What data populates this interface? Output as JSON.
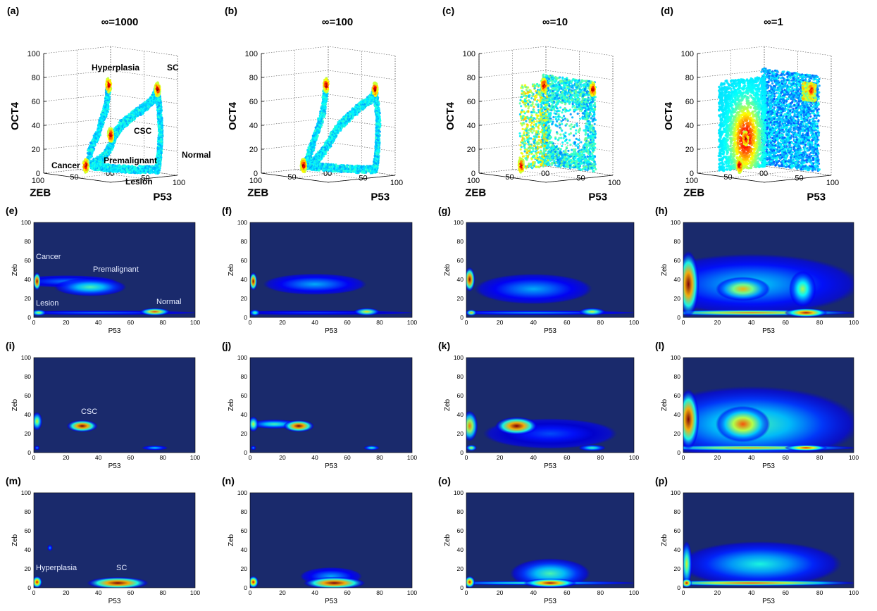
{
  "chart_data": [
    {
      "panel": "(a)",
      "type": "scatter",
      "title": "∞=1000",
      "xlabel": "P53",
      "ylabel": "ZEB",
      "zlabel": "OCT4",
      "xlim": [
        0,
        100
      ],
      "ylim": [
        0,
        100
      ],
      "zlim": [
        0,
        100
      ],
      "annotations": [
        "Hyperplasia",
        "SC",
        "CSC",
        "Normal",
        "Premalignant",
        "Cancer",
        "Lesion"
      ],
      "curves": [
        {
          "pts": [
            [
              75,
              5,
              70
            ],
            [
              70,
              5,
              62
            ],
            [
              62,
              10,
              55
            ],
            [
              55,
              20,
              48
            ],
            [
              45,
              28,
              40
            ],
            [
              35,
              30,
              30
            ],
            [
              30,
              30,
              20
            ],
            [
              20,
              32,
              10
            ],
            [
              5,
              35,
              3
            ]
          ]
        },
        {
          "pts": [
            [
              75,
              5,
              70
            ],
            [
              78,
              5,
              55
            ],
            [
              80,
              5,
              35
            ],
            [
              78,
              5,
              15
            ],
            [
              75,
              5,
              3
            ]
          ]
        },
        {
          "pts": [
            [
              2,
              5,
              68
            ],
            [
              2,
              8,
              50
            ],
            [
              2,
              20,
              30
            ],
            [
              2,
              35,
              10
            ]
          ]
        },
        {
          "pts": [
            [
              75,
              5,
              3
            ],
            [
              55,
              25,
              3
            ],
            [
              35,
              35,
              3
            ],
            [
              10,
              38,
              3
            ]
          ]
        }
      ],
      "clusters": [
        [
          75,
          5,
          70
        ],
        [
          2,
          5,
          68
        ],
        [
          3,
          40,
          3
        ],
        [
          30,
          30,
          30
        ]
      ]
    },
    {
      "panel": "(b)",
      "type": "scatter",
      "title": "∞=100",
      "xlabel": "P53",
      "ylabel": "ZEB",
      "zlabel": "OCT4",
      "xlim": [
        0,
        100
      ],
      "ylim": [
        0,
        100
      ],
      "zlim": [
        0,
        100
      ],
      "curves": [
        {
          "pts": [
            [
              75,
              5,
              70
            ],
            [
              70,
              5,
              62
            ],
            [
              60,
              12,
              55
            ],
            [
              50,
              22,
              45
            ],
            [
              40,
              28,
              35
            ],
            [
              30,
              30,
              22
            ],
            [
              15,
              33,
              8
            ],
            [
              5,
              35,
              3
            ]
          ]
        },
        {
          "pts": [
            [
              75,
              5,
              70
            ],
            [
              80,
              5,
              45
            ],
            [
              78,
              5,
              15
            ],
            [
              75,
              5,
              3
            ]
          ]
        },
        {
          "pts": [
            [
              2,
              5,
              68
            ],
            [
              2,
              10,
              45
            ],
            [
              2,
              25,
              20
            ],
            [
              2,
              35,
              5
            ]
          ]
        },
        {
          "pts": [
            [
              75,
              5,
              3
            ],
            [
              50,
              25,
              3
            ],
            [
              20,
              35,
              3
            ],
            [
              5,
              38,
              3
            ]
          ]
        }
      ],
      "clusters": [
        [
          75,
          5,
          70
        ],
        [
          2,
          5,
          68
        ],
        [
          3,
          40,
          3
        ]
      ]
    },
    {
      "panel": "(c)",
      "type": "scatter",
      "title": "∞=10",
      "xlabel": "P53",
      "ylabel": "ZEB",
      "zlabel": "OCT4",
      "xlim": [
        0,
        100
      ],
      "ylim": [
        0,
        100
      ],
      "zlim": [
        0,
        100
      ],
      "clusters": [
        [
          3,
          40,
          3
        ],
        [
          2,
          5,
          68
        ],
        [
          75,
          5,
          70
        ]
      ]
    },
    {
      "panel": "(d)",
      "type": "scatter",
      "title": "∞=1",
      "xlabel": "P53",
      "ylabel": "ZEB",
      "zlabel": "OCT4",
      "xlim": [
        0,
        100
      ],
      "ylim": [
        0,
        100
      ],
      "zlim": [
        0,
        100
      ],
      "clusters": [
        [
          2,
          30,
          25
        ],
        [
          3,
          40,
          3
        ],
        [
          75,
          5,
          70
        ]
      ]
    },
    {
      "panel": "(e)",
      "type": "heatmap",
      "xlabel": "P53",
      "ylabel": "Zeb",
      "xlim": [
        0,
        100
      ],
      "ylim": [
        0,
        100
      ],
      "annotations": [
        "Cancer",
        "Premalignant",
        "Normal",
        "Lesion"
      ],
      "blobs": [
        [
          2,
          38,
          1.5,
          6,
          1.0
        ],
        [
          35,
          32,
          14,
          6,
          0.45
        ],
        [
          75,
          6,
          6,
          2.5,
          0.8
        ],
        [
          3,
          5,
          3,
          2,
          0.6
        ],
        [
          40,
          5,
          40,
          1,
          0.25
        ],
        [
          20,
          38,
          20,
          4,
          0.25
        ]
      ]
    },
    {
      "panel": "(f)",
      "type": "heatmap",
      "xlabel": "P53",
      "ylabel": "Zeb",
      "xlim": [
        0,
        100
      ],
      "ylim": [
        0,
        100
      ],
      "blobs": [
        [
          2,
          38,
          1.5,
          6,
          1.0
        ],
        [
          40,
          35,
          20,
          7,
          0.3
        ],
        [
          72,
          6,
          5,
          2.5,
          0.65
        ],
        [
          3,
          5,
          2,
          2,
          0.5
        ],
        [
          40,
          5,
          40,
          1,
          0.2
        ]
      ]
    },
    {
      "panel": "(g)",
      "type": "heatmap",
      "xlabel": "P53",
      "ylabel": "Zeb",
      "xlim": [
        0,
        100
      ],
      "ylim": [
        0,
        100
      ],
      "blobs": [
        [
          2,
          40,
          2,
          8,
          1.0
        ],
        [
          40,
          30,
          22,
          10,
          0.3
        ],
        [
          75,
          6,
          5,
          2.5,
          0.6
        ],
        [
          3,
          5,
          2,
          2,
          0.7
        ],
        [
          40,
          5,
          40,
          1,
          0.3
        ]
      ]
    },
    {
      "panel": "(h)",
      "type": "heatmap",
      "xlabel": "P53",
      "ylabel": "Zeb",
      "xlim": [
        0,
        100
      ],
      "ylim": [
        0,
        100
      ],
      "blobs": [
        [
          3,
          35,
          4,
          22,
          1.0
        ],
        [
          35,
          30,
          10,
          8,
          0.7
        ],
        [
          70,
          30,
          5,
          12,
          0.55
        ],
        [
          72,
          5,
          8,
          3,
          0.95
        ],
        [
          40,
          5,
          40,
          2,
          0.75
        ],
        [
          40,
          35,
          40,
          20,
          0.35
        ]
      ]
    },
    {
      "panel": "(i)",
      "type": "heatmap",
      "xlabel": "P53",
      "ylabel": "Zeb",
      "xlim": [
        0,
        100
      ],
      "ylim": [
        0,
        100
      ],
      "annotations": [
        "CSC"
      ],
      "blobs": [
        [
          30,
          28,
          6,
          4,
          1.0
        ],
        [
          2,
          33,
          2,
          6,
          0.6
        ],
        [
          75,
          5,
          5,
          1.5,
          0.35
        ],
        [
          2,
          5,
          1,
          1,
          0.3
        ]
      ]
    },
    {
      "panel": "(j)",
      "type": "heatmap",
      "xlabel": "P53",
      "ylabel": "Zeb",
      "xlim": [
        0,
        100
      ],
      "ylim": [
        0,
        100
      ],
      "blobs": [
        [
          30,
          28,
          6,
          4,
          1.0
        ],
        [
          2,
          30,
          2,
          5,
          0.6
        ],
        [
          15,
          30,
          10,
          3,
          0.45
        ],
        [
          75,
          5,
          3,
          1.5,
          0.45
        ],
        [
          2,
          5,
          1,
          1,
          0.3
        ]
      ]
    },
    {
      "panel": "(k)",
      "type": "heatmap",
      "xlabel": "P53",
      "ylabel": "Zeb",
      "xlim": [
        0,
        100
      ],
      "ylim": [
        0,
        100
      ],
      "blobs": [
        [
          30,
          28,
          8,
          6,
          1.0
        ],
        [
          2,
          28,
          3,
          10,
          0.75
        ],
        [
          75,
          5,
          5,
          2,
          0.45
        ],
        [
          3,
          5,
          2,
          2,
          0.6
        ],
        [
          50,
          20,
          25,
          10,
          0.2
        ]
      ]
    },
    {
      "panel": "(l)",
      "type": "heatmap",
      "xlabel": "P53",
      "ylabel": "Zeb",
      "xlim": [
        0,
        100
      ],
      "ylim": [
        0,
        100
      ],
      "blobs": [
        [
          3,
          35,
          4,
          20,
          1.0
        ],
        [
          35,
          30,
          10,
          12,
          0.8
        ],
        [
          72,
          5,
          8,
          2,
          0.9
        ],
        [
          40,
          5,
          40,
          2,
          0.7
        ],
        [
          40,
          30,
          40,
          25,
          0.45
        ]
      ]
    },
    {
      "panel": "(m)",
      "type": "heatmap",
      "xlabel": "P53",
      "ylabel": "Zeb",
      "xlim": [
        0,
        100
      ],
      "ylim": [
        0,
        100
      ],
      "annotations": [
        "Hyperplasia",
        "SC"
      ],
      "blobs": [
        [
          52,
          5,
          12,
          4,
          1.0
        ],
        [
          2,
          6,
          2,
          4,
          0.9
        ],
        [
          10,
          42,
          1,
          2,
          0.3
        ]
      ]
    },
    {
      "panel": "(n)",
      "type": "heatmap",
      "xlabel": "P53",
      "ylabel": "Zeb",
      "xlim": [
        0,
        100
      ],
      "ylim": [
        0,
        100
      ],
      "blobs": [
        [
          52,
          5,
          12,
          4,
          1.0
        ],
        [
          2,
          6,
          2,
          4,
          0.9
        ],
        [
          50,
          12,
          12,
          6,
          0.3
        ]
      ]
    },
    {
      "panel": "(o)",
      "type": "heatmap",
      "xlabel": "P53",
      "ylabel": "Zeb",
      "xlim": [
        0,
        100
      ],
      "ylim": [
        0,
        100
      ],
      "blobs": [
        [
          50,
          5,
          10,
          3,
          0.95
        ],
        [
          2,
          6,
          2,
          4,
          0.9
        ],
        [
          50,
          15,
          15,
          10,
          0.45
        ],
        [
          40,
          5,
          40,
          1,
          0.45
        ]
      ]
    },
    {
      "panel": "(p)",
      "type": "heatmap",
      "xlabel": "P53",
      "ylabel": "Zeb",
      "xlim": [
        0,
        100
      ],
      "ylim": [
        0,
        100
      ],
      "blobs": [
        [
          2,
          5,
          2,
          3,
          0.95
        ],
        [
          40,
          5,
          40,
          2,
          0.8
        ],
        [
          45,
          25,
          30,
          15,
          0.4
        ],
        [
          2,
          25,
          2,
          15,
          0.6
        ]
      ]
    }
  ]
}
